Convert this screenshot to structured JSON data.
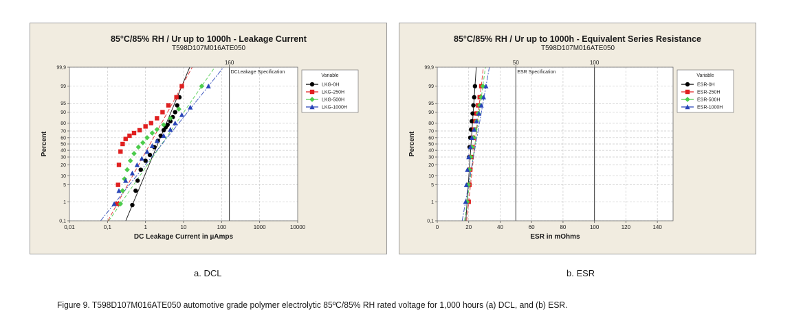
{
  "colors": {
    "panel_bg": "#f1ece0",
    "plot_bg": "#ffffff",
    "series": [
      "#000000",
      "#e02020",
      "#4ccc4c",
      "#2845b8"
    ]
  },
  "figure_caption": "Figure 9. T598D107M016ATE050 automotive grade polymer electrolytic 85ºC/85% RH rated voltage for 1,000 hours (a) DCL, and (b) ESR.",
  "chart_data": [
    {
      "type": "scatter",
      "title": "85°C/85% RH / Ur up to 1000h - Leakage Current",
      "subtitle": "T598D107M016ATE050",
      "sub_caption": "a. DCL",
      "xlabel": "DC Leakage Current in µAmps",
      "ylabel": "Percent",
      "x_scale": "log",
      "y_scale": "probability",
      "xlim": [
        0.01,
        10000
      ],
      "ylim": [
        0.1,
        99.9
      ],
      "x_ticks": [
        "0,01",
        "0,1",
        "1",
        "10",
        "100",
        "1000",
        "10000"
      ],
      "y_ticks": [
        "0,1",
        "1",
        "5",
        "10",
        "20",
        "30",
        "40",
        "50",
        "60",
        "70",
        "80",
        "90",
        "95",
        "99",
        "99,9"
      ],
      "reference_line": {
        "value": 160,
        "label": "160",
        "text": "DCLeakage Specification"
      },
      "legend": {
        "title": "Variable",
        "position": "top-right"
      },
      "grid": true,
      "series": [
        {
          "name": "LKG-0H",
          "marker": "circle",
          "color": "#000000",
          "x": [
            0.45,
            0.55,
            0.62,
            0.75,
            1.0,
            1.3,
            1.7,
            2.1,
            2.5,
            3.0,
            3.4,
            3.8,
            4.5,
            5.2,
            6.0,
            6.8,
            7.8,
            9.0
          ],
          "y": [
            0.7,
            3,
            7,
            15,
            25,
            33,
            45,
            55,
            63,
            71,
            75,
            78,
            82,
            86,
            90,
            94,
            97,
            99
          ]
        },
        {
          "name": "LKG-250H",
          "marker": "square",
          "color": "#e02020",
          "x": [
            0.18,
            0.19,
            0.2,
            0.22,
            0.25,
            0.3,
            0.38,
            0.5,
            0.7,
            1.0,
            1.4,
            2.0,
            2.8,
            4.0,
            6.5,
            9.0
          ],
          "y": [
            0.8,
            5,
            20,
            38,
            50,
            58,
            63,
            67,
            71,
            76,
            80,
            85,
            90,
            94,
            97,
            99
          ]
        },
        {
          "name": "LKG-500H",
          "marker": "diamond",
          "color": "#4ccc4c",
          "x": [
            0.22,
            0.25,
            0.28,
            0.33,
            0.4,
            0.5,
            0.65,
            0.85,
            1.1,
            1.5,
            2.0,
            3.0,
            4.5,
            7.5,
            30.0
          ],
          "y": [
            0.8,
            3,
            8,
            15,
            25,
            35,
            45,
            52,
            60,
            67,
            72,
            78,
            85,
            92,
            99
          ]
        },
        {
          "name": "LKG-1000H",
          "marker": "triangle",
          "color": "#2845b8",
          "x": [
            0.15,
            0.2,
            0.3,
            0.45,
            0.6,
            0.8,
            1.1,
            1.5,
            2.0,
            3.0,
            4.5,
            6.0,
            9.0,
            15.0,
            45.0
          ],
          "y": [
            0.8,
            3,
            7,
            12,
            20,
            28,
            38,
            47,
            55,
            63,
            72,
            80,
            88,
            93,
            99
          ]
        }
      ]
    },
    {
      "type": "scatter",
      "title": "85°C/85% RH / Ur up to 1000h - Equivalent Series Resistance",
      "subtitle": "T598D107M016ATE050",
      "sub_caption": "b. ESR",
      "xlabel": "ESR in mOhms",
      "ylabel": "Percent",
      "x_scale": "linear",
      "y_scale": "probability",
      "xlim": [
        0,
        150
      ],
      "ylim": [
        0.1,
        99.9
      ],
      "x_ticks": [
        "0",
        "20",
        "40",
        "60",
        "80",
        "100",
        "120",
        "140"
      ],
      "y_ticks": [
        "0,1",
        "1",
        "5",
        "10",
        "20",
        "30",
        "40",
        "50",
        "60",
        "70",
        "80",
        "90",
        "95",
        "99",
        "99,9"
      ],
      "reference_lines": [
        {
          "value": 50,
          "label": "50",
          "text": "ESR Specification"
        },
        {
          "value": 100,
          "label": "100",
          "text": ""
        }
      ],
      "legend": {
        "title": "Variable",
        "position": "top-right"
      },
      "grid": true,
      "series": [
        {
          "name": "ESR-0H",
          "marker": "circle",
          "color": "#000000",
          "x": [
            19,
            19.5,
            20,
            20.3,
            20.6,
            21,
            21.5,
            22,
            22.5,
            23,
            23.5,
            24
          ],
          "y": [
            1,
            5,
            15,
            30,
            45,
            60,
            72,
            82,
            89,
            94,
            97,
            99
          ]
        },
        {
          "name": "ESR-250H",
          "marker": "square",
          "color": "#e02020",
          "x": [
            20,
            20.5,
            21,
            21.5,
            22,
            22.8,
            23.5,
            24.3,
            25,
            26,
            27,
            28
          ],
          "y": [
            1,
            5,
            15,
            30,
            45,
            60,
            72,
            82,
            89,
            94,
            97,
            99
          ]
        },
        {
          "name": "ESR-500H",
          "marker": "diamond",
          "color": "#4ccc4c",
          "x": [
            19,
            19.8,
            20.5,
            21.3,
            22,
            23,
            24,
            25,
            26,
            27,
            28,
            29
          ],
          "y": [
            1,
            5,
            15,
            30,
            45,
            60,
            72,
            82,
            89,
            94,
            97,
            99
          ]
        },
        {
          "name": "ESR-1000H",
          "marker": "triangle",
          "color": "#2845b8",
          "x": [
            18,
            18.5,
            19.2,
            20,
            21,
            22,
            23.5,
            25,
            26.5,
            28,
            29.5,
            31
          ],
          "y": [
            1,
            5,
            15,
            30,
            45,
            60,
            72,
            82,
            89,
            94,
            97,
            99
          ]
        }
      ]
    }
  ]
}
